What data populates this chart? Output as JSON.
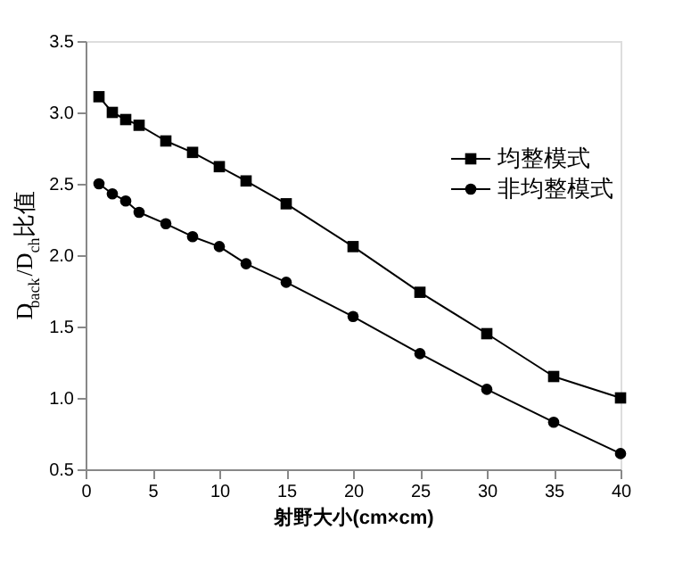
{
  "chart_data": {
    "type": "line",
    "xlabel": "射野大小(cm×cm)",
    "ylabel": "D$_{back}$/D$_{ch}$比值",
    "x": [
      1,
      2,
      3,
      4,
      6,
      8,
      10,
      12,
      15,
      20,
      25,
      30,
      35,
      40
    ],
    "series": [
      {
        "name": "均整模式",
        "color": "#000000",
        "marker": "square",
        "values": [
          3.11,
          3.0,
          2.95,
          2.91,
          2.8,
          2.72,
          2.62,
          2.52,
          2.36,
          2.06,
          1.74,
          1.45,
          1.15,
          1.0
        ]
      },
      {
        "name": "非均整模式",
        "color": "#000000",
        "marker": "circle",
        "values": [
          2.5,
          2.43,
          2.38,
          2.3,
          2.22,
          2.13,
          2.06,
          1.94,
          1.81,
          1.57,
          1.31,
          1.06,
          0.83,
          0.61
        ]
      }
    ],
    "xlim": [
      0,
      40
    ],
    "xticks": [
      0,
      5,
      10,
      15,
      20,
      25,
      30,
      35,
      40
    ],
    "ylim": [
      0.5,
      3.5
    ],
    "yticks": [
      {
        "value": 0.5,
        "label": "0.5"
      },
      {
        "value": 1.0,
        "label": "1.0"
      },
      {
        "value": 1.5,
        "label": "1.5"
      },
      {
        "value": 2.0,
        "label": "2.0"
      },
      {
        "value": 2.5,
        "label": "2.5"
      },
      {
        "value": 3.0,
        "label": "3.0"
      },
      {
        "value": 3.5,
        "label": "3.5"
      }
    ],
    "legend": "right",
    "grid": false,
    "line_style": "solid"
  }
}
